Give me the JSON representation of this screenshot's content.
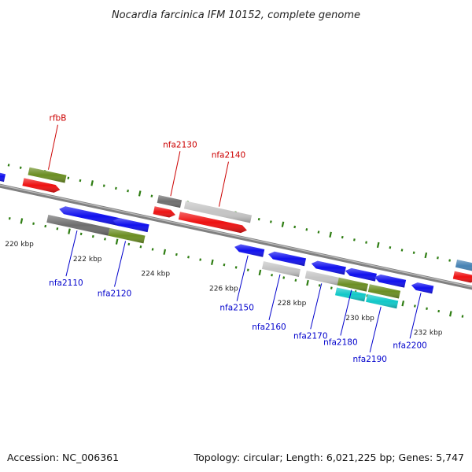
{
  "header": {
    "title": "Nocardia farcinica IFM 10152, complete genome"
  },
  "footer": {
    "accession": "Accession: NC_006361",
    "summary": "Topology: circular; Length: 6,021,225 bp; Genes: 5,747"
  },
  "colors": {
    "backbone": "#808080",
    "tick": "#2e7d12",
    "label_top": "#cc0000",
    "label_bottom": "#0000cc",
    "gene_blue": "#1010ee",
    "gene_red": "#ee1111",
    "gene_green": "#6b8e23",
    "gene_darkgray": "#6e6e6e",
    "gene_lightgray": "#c4c4c4",
    "gene_cyan": "#11c8c8",
    "gene_steelblue": "#4682b4"
  },
  "scale": {
    "ticks": [
      {
        "kbp": 220,
        "label": "220 kbp"
      },
      {
        "kbp": 222,
        "label": "222 kbp"
      },
      {
        "kbp": 224,
        "label": "224 kbp"
      },
      {
        "kbp": 226,
        "label": "226 kbp"
      },
      {
        "kbp": 228,
        "label": "228 kbp"
      },
      {
        "kbp": 230,
        "label": "230 kbp"
      },
      {
        "kbp": 232,
        "label": "232 kbp"
      }
    ]
  },
  "genes": [
    {
      "label": "",
      "color": "blue",
      "strand": -1,
      "ring": 1
    },
    {
      "label": "",
      "color": "red",
      "strand": 1,
      "ring": 1
    },
    {
      "label": "rfbB",
      "color": "green",
      "strand": 1,
      "ring": 2
    },
    {
      "label": "",
      "color": "blue",
      "strand": -1,
      "ring": -1
    },
    {
      "label": "nfa2110",
      "color": "darkgray",
      "strand": -1,
      "ring": -2
    },
    {
      "label": "",
      "color": "blue",
      "strand": -1,
      "ring": -1
    },
    {
      "label": "nfa2120",
      "color": "green",
      "strand": -1,
      "ring": -2
    },
    {
      "label": "nfa2130",
      "color": "darkgray",
      "strand": 1,
      "ring": 2
    },
    {
      "label": "",
      "color": "red",
      "strand": 1,
      "ring": 1
    },
    {
      "label": "nfa2140",
      "color": "lightgray",
      "strand": 1,
      "ring": 2
    },
    {
      "label": "",
      "color": "red",
      "strand": 1,
      "ring": 1
    },
    {
      "label": "nfa2150",
      "color": "blue",
      "strand": -1,
      "ring": -1
    },
    {
      "label": "",
      "color": "blue",
      "strand": -1,
      "ring": -1
    },
    {
      "label": "nfa2160",
      "color": "lightgray",
      "strand": -1,
      "ring": -2
    },
    {
      "label": "",
      "color": "blue",
      "strand": -1,
      "ring": -1
    },
    {
      "label": "nfa2170",
      "color": "lightgray",
      "strand": -1,
      "ring": -2
    },
    {
      "label": "",
      "color": "blue",
      "strand": -1,
      "ring": -1
    },
    {
      "label": "nfa2180",
      "color": "green",
      "strand": -1,
      "ring": -2
    },
    {
      "label": "",
      "color": "cyan",
      "strand": -1,
      "ring": -3
    },
    {
      "label": "",
      "color": "blue",
      "strand": -1,
      "ring": -1
    },
    {
      "label": "",
      "color": "green",
      "strand": -1,
      "ring": -2
    },
    {
      "label": "nfa2190",
      "color": "cyan",
      "strand": -1,
      "ring": -3
    },
    {
      "label": "nfa2200",
      "color": "blue",
      "strand": -1,
      "ring": -1
    },
    {
      "label": "",
      "color": "steelblue",
      "strand": 1,
      "ring": 2
    },
    {
      "label": "",
      "color": "red",
      "strand": 1,
      "ring": 1
    }
  ]
}
